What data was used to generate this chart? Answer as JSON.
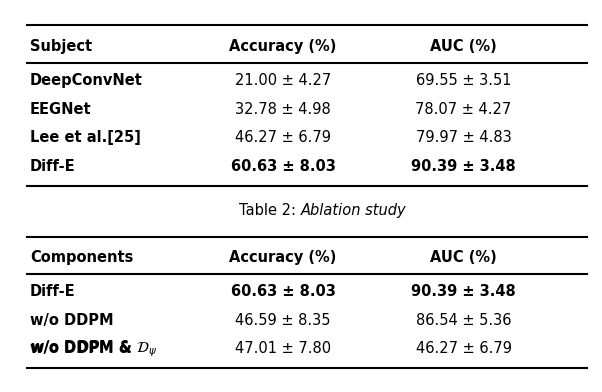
{
  "table1": {
    "header": [
      "Subject",
      "Accuracy (%)",
      "AUC (%)"
    ],
    "rows": [
      [
        "DeepConvNet",
        "21.00 ± 4.27",
        "69.55 ± 3.51"
      ],
      [
        "EEGNet",
        "32.78 ± 4.98",
        "78.07 ± 4.27"
      ],
      [
        "Lee et al.[25]",
        "46.27 ± 6.79",
        "79.97 ± 4.83"
      ],
      [
        "Diff-E",
        "60.63 ± 8.03",
        "90.39 ± 3.48"
      ]
    ],
    "bold_subject": [
      0,
      1,
      2,
      3
    ],
    "bold_values": {
      "3": [
        1,
        2
      ]
    }
  },
  "caption_prefix": "Table 2: ",
  "caption_italic": "Ablation study",
  "table2": {
    "header": [
      "Components",
      "Accuracy (%)",
      "AUC (%)"
    ],
    "rows": [
      [
        "Diff-E",
        "60.63 ± 8.03",
        "90.39 ± 3.48"
      ],
      [
        "w/o DDPM",
        "46.59 ± 8.35",
        "86.54 ± 5.36"
      ],
      [
        "w/o DDPM & ",
        "47.01 ± 7.80",
        "46.27 ± 6.79"
      ]
    ],
    "bold_subject": [
      0,
      1,
      2
    ],
    "bold_values": {
      "0": [
        1,
        2
      ]
    }
  },
  "bg_color": "#ffffff",
  "text_color": "#000000",
  "font_size": 10.5,
  "line_width": 1.5
}
